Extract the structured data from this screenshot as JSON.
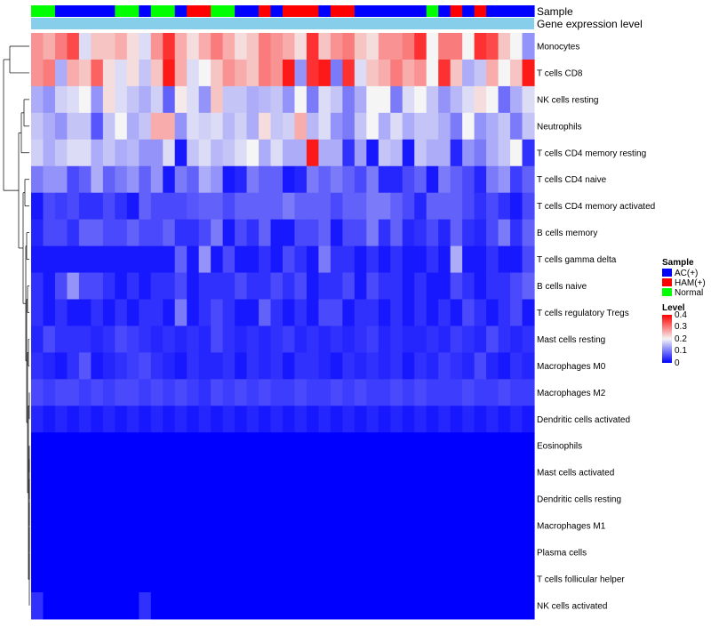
{
  "chart_data": {
    "type": "heatmap",
    "title": "",
    "annotation_tracks": [
      "Sample",
      "Gene expression level"
    ],
    "sample_groups": [
      "AC(+)",
      "HAM(+)",
      "Normal"
    ],
    "sample_annotation": [
      "Normal",
      "Normal",
      "AC(+)",
      "AC(+)",
      "AC(+)",
      "AC(+)",
      "AC(+)",
      "Normal",
      "Normal",
      "AC(+)",
      "Normal",
      "Normal",
      "AC(+)",
      "HAM(+)",
      "HAM(+)",
      "Normal",
      "Normal",
      "AC(+)",
      "AC(+)",
      "HAM(+)",
      "AC(+)",
      "HAM(+)",
      "HAM(+)",
      "HAM(+)",
      "AC(+)",
      "HAM(+)",
      "HAM(+)",
      "AC(+)",
      "AC(+)",
      "AC(+)",
      "AC(+)",
      "AC(+)",
      "AC(+)",
      "Normal",
      "AC(+)",
      "HAM(+)",
      "AC(+)",
      "HAM(+)",
      "AC(+)",
      "AC(+)",
      "AC(+)",
      "AC(+)"
    ],
    "rows": [
      "Monocytes",
      "T cells CD8",
      "NK cells resting",
      "Neutrophils",
      "T cells CD4 memory resting",
      "T cells CD4 naive",
      "T cells CD4 memory activated",
      "B cells memory",
      "T cells gamma delta",
      "B cells naive",
      "T cells regulatory  Tregs",
      "Mast cells resting",
      "Macrophages M0",
      "Macrophages M2",
      "Dendritic cells activated",
      "Eosinophils",
      "Mast cells activated",
      "Dendritic cells resting",
      "Macrophages M1",
      "Plasma cells",
      "T cells follicular helper",
      "NK cells activated"
    ],
    "values": [
      [
        0.28,
        0.26,
        0.3,
        0.34,
        0.18,
        0.24,
        0.24,
        0.26,
        0.22,
        0.18,
        0.28,
        0.36,
        0.26,
        0.22,
        0.26,
        0.3,
        0.26,
        0.22,
        0.24,
        0.3,
        0.28,
        0.26,
        0.22,
        0.36,
        0.24,
        0.28,
        0.3,
        0.24,
        0.22,
        0.28,
        0.28,
        0.3,
        0.36,
        0.2,
        0.3,
        0.3,
        0.2,
        0.36,
        0.34,
        0.24,
        0.2,
        0.12
      ],
      [
        0.28,
        0.3,
        0.14,
        0.26,
        0.24,
        0.32,
        0.22,
        0.18,
        0.22,
        0.16,
        0.24,
        0.38,
        0.26,
        0.18,
        0.2,
        0.24,
        0.28,
        0.26,
        0.24,
        0.3,
        0.28,
        0.38,
        0.12,
        0.36,
        0.38,
        0.1,
        0.36,
        0.18,
        0.24,
        0.26,
        0.3,
        0.26,
        0.28,
        0.2,
        0.36,
        0.24,
        0.14,
        0.16,
        0.26,
        0.2,
        0.24,
        0.38
      ],
      [
        0.14,
        0.12,
        0.17,
        0.18,
        0.2,
        0.12,
        0.22,
        0.18,
        0.16,
        0.14,
        0.17,
        0.08,
        0.21,
        0.18,
        0.12,
        0.24,
        0.16,
        0.16,
        0.14,
        0.15,
        0.16,
        0.12,
        0.2,
        0.1,
        0.18,
        0.16,
        0.1,
        0.14,
        0.2,
        0.2,
        0.1,
        0.18,
        0.2,
        0.16,
        0.12,
        0.15,
        0.18,
        0.22,
        0.2,
        0.09,
        0.14,
        0.18
      ],
      [
        0.16,
        0.14,
        0.12,
        0.16,
        0.16,
        0.07,
        0.16,
        0.2,
        0.14,
        0.16,
        0.26,
        0.26,
        0.12,
        0.18,
        0.17,
        0.18,
        0.15,
        0.17,
        0.14,
        0.22,
        0.16,
        0.17,
        0.26,
        0.15,
        0.18,
        0.12,
        0.1,
        0.16,
        0.2,
        0.14,
        0.18,
        0.14,
        0.16,
        0.16,
        0.14,
        0.1,
        0.2,
        0.12,
        0.14,
        0.16,
        0.1,
        0.16
      ],
      [
        0.17,
        0.14,
        0.16,
        0.18,
        0.18,
        0.14,
        0.16,
        0.14,
        0.15,
        0.12,
        0.12,
        0.18,
        0.02,
        0.16,
        0.18,
        0.15,
        0.16,
        0.18,
        0.2,
        0.14,
        0.18,
        0.14,
        0.14,
        0.38,
        0.14,
        0.14,
        0.04,
        0.13,
        0.02,
        0.16,
        0.15,
        0.02,
        0.16,
        0.14,
        0.14,
        0.03,
        0.12,
        0.1,
        0.14,
        0.16,
        0.2,
        0.04
      ],
      [
        0.1,
        0.12,
        0.12,
        0.06,
        0.08,
        0.14,
        0.08,
        0.1,
        0.12,
        0.08,
        0.12,
        0.02,
        0.1,
        0.08,
        0.14,
        0.12,
        0.02,
        0.03,
        0.1,
        0.08,
        0.08,
        0.02,
        0.03,
        0.1,
        0.08,
        0.1,
        0.08,
        0.06,
        0.1,
        0.03,
        0.03,
        0.06,
        0.08,
        0.02,
        0.1,
        0.08,
        0.06,
        0.03,
        0.1,
        0.12,
        0.05,
        0.08
      ],
      [
        0.02,
        0.06,
        0.05,
        0.06,
        0.04,
        0.04,
        0.06,
        0.04,
        0.02,
        0.08,
        0.06,
        0.06,
        0.06,
        0.07,
        0.08,
        0.08,
        0.06,
        0.08,
        0.08,
        0.08,
        0.08,
        0.1,
        0.08,
        0.08,
        0.08,
        0.06,
        0.08,
        0.08,
        0.1,
        0.1,
        0.08,
        0.06,
        0.03,
        0.08,
        0.08,
        0.08,
        0.06,
        0.04,
        0.06,
        0.04,
        0.02,
        0.06
      ],
      [
        0.03,
        0.06,
        0.06,
        0.04,
        0.08,
        0.08,
        0.06,
        0.06,
        0.08,
        0.06,
        0.06,
        0.08,
        0.04,
        0.04,
        0.06,
        0.1,
        0.02,
        0.06,
        0.04,
        0.08,
        0.02,
        0.02,
        0.06,
        0.06,
        0.08,
        0.02,
        0.06,
        0.06,
        0.1,
        0.04,
        0.08,
        0.03,
        0.04,
        0.06,
        0.03,
        0.08,
        0.04,
        0.03,
        0.06,
        0.1,
        0.04,
        0.08
      ],
      [
        0.02,
        0.02,
        0.02,
        0.02,
        0.02,
        0.02,
        0.02,
        0.02,
        0.02,
        0.02,
        0.02,
        0.02,
        0.08,
        0.02,
        0.12,
        0.02,
        0.06,
        0.02,
        0.02,
        0.04,
        0.02,
        0.06,
        0.04,
        0.02,
        0.1,
        0.04,
        0.04,
        0.02,
        0.04,
        0.02,
        0.04,
        0.02,
        0.02,
        0.04,
        0.02,
        0.14,
        0.02,
        0.02,
        0.04,
        0.02,
        0.02,
        0.06
      ],
      [
        0.04,
        0.02,
        0.06,
        0.12,
        0.06,
        0.06,
        0.04,
        0.02,
        0.04,
        0.02,
        0.04,
        0.04,
        0.06,
        0.02,
        0.04,
        0.04,
        0.04,
        0.06,
        0.04,
        0.04,
        0.06,
        0.04,
        0.06,
        0.02,
        0.04,
        0.04,
        0.06,
        0.02,
        0.06,
        0.04,
        0.04,
        0.02,
        0.04,
        0.02,
        0.02,
        0.06,
        0.04,
        0.02,
        0.04,
        0.04,
        0.06,
        0.08
      ],
      [
        0.04,
        0.02,
        0.04,
        0.02,
        0.02,
        0.04,
        0.02,
        0.04,
        0.02,
        0.04,
        0.04,
        0.02,
        0.1,
        0.02,
        0.04,
        0.06,
        0.04,
        0.02,
        0.02,
        0.08,
        0.04,
        0.02,
        0.04,
        0.02,
        0.06,
        0.06,
        0.02,
        0.04,
        0.04,
        0.02,
        0.04,
        0.02,
        0.04,
        0.02,
        0.04,
        0.02,
        0.06,
        0.04,
        0.02,
        0.04,
        0.06,
        0.02
      ],
      [
        0.03,
        0.06,
        0.04,
        0.04,
        0.04,
        0.03,
        0.04,
        0.06,
        0.05,
        0.04,
        0.03,
        0.04,
        0.03,
        0.04,
        0.03,
        0.06,
        0.04,
        0.03,
        0.04,
        0.03,
        0.04,
        0.05,
        0.03,
        0.04,
        0.03,
        0.04,
        0.03,
        0.04,
        0.05,
        0.03,
        0.04,
        0.03,
        0.03,
        0.04,
        0.03,
        0.05,
        0.04,
        0.03,
        0.06,
        0.04,
        0.03,
        0.04
      ],
      [
        0.04,
        0.03,
        0.02,
        0.04,
        0.07,
        0.02,
        0.03,
        0.04,
        0.05,
        0.06,
        0.04,
        0.03,
        0.02,
        0.04,
        0.03,
        0.03,
        0.04,
        0.02,
        0.04,
        0.03,
        0.04,
        0.02,
        0.04,
        0.04,
        0.03,
        0.02,
        0.04,
        0.03,
        0.04,
        0.03,
        0.04,
        0.02,
        0.04,
        0.03,
        0.05,
        0.04,
        0.03,
        0.06,
        0.03,
        0.02,
        0.04,
        0.03
      ],
      [
        0.06,
        0.05,
        0.06,
        0.06,
        0.05,
        0.06,
        0.05,
        0.06,
        0.06,
        0.05,
        0.06,
        0.05,
        0.06,
        0.05,
        0.04,
        0.06,
        0.05,
        0.06,
        0.05,
        0.06,
        0.05,
        0.05,
        0.06,
        0.05,
        0.05,
        0.06,
        0.05,
        0.06,
        0.05,
        0.05,
        0.06,
        0.05,
        0.06,
        0.05,
        0.05,
        0.05,
        0.06,
        0.05,
        0.05,
        0.06,
        0.05,
        0.05
      ],
      [
        0.03,
        0.02,
        0.03,
        0.02,
        0.03,
        0.02,
        0.03,
        0.02,
        0.03,
        0.02,
        0.03,
        0.02,
        0.03,
        0.02,
        0.03,
        0.02,
        0.03,
        0.02,
        0.03,
        0.02,
        0.03,
        0.02,
        0.03,
        0.02,
        0.03,
        0.02,
        0.03,
        0.02,
        0.03,
        0.02,
        0.03,
        0.02,
        0.03,
        0.02,
        0.03,
        0.02,
        0.03,
        0.02,
        0.03,
        0.02,
        0.03,
        0.02
      ],
      [
        0,
        0,
        0,
        0,
        0,
        0,
        0,
        0,
        0,
        0,
        0,
        0,
        0,
        0,
        0,
        0,
        0,
        0,
        0,
        0,
        0,
        0,
        0,
        0,
        0,
        0,
        0,
        0,
        0,
        0,
        0,
        0,
        0,
        0,
        0,
        0,
        0,
        0,
        0,
        0,
        0,
        0
      ],
      [
        0,
        0,
        0,
        0,
        0,
        0,
        0,
        0,
        0,
        0,
        0,
        0,
        0,
        0,
        0,
        0,
        0,
        0,
        0,
        0,
        0,
        0,
        0,
        0,
        0,
        0,
        0,
        0,
        0,
        0,
        0,
        0,
        0,
        0,
        0,
        0,
        0,
        0,
        0,
        0,
        0,
        0
      ],
      [
        0,
        0,
        0,
        0,
        0,
        0,
        0,
        0,
        0,
        0,
        0,
        0,
        0,
        0,
        0,
        0,
        0,
        0,
        0,
        0,
        0,
        0,
        0,
        0,
        0,
        0,
        0,
        0,
        0,
        0,
        0,
        0,
        0,
        0,
        0,
        0,
        0,
        0,
        0,
        0,
        0,
        0
      ],
      [
        0,
        0,
        0,
        0,
        0,
        0,
        0,
        0,
        0,
        0,
        0,
        0,
        0,
        0,
        0,
        0,
        0,
        0,
        0,
        0,
        0,
        0,
        0,
        0,
        0,
        0,
        0,
        0,
        0,
        0,
        0,
        0,
        0,
        0,
        0,
        0,
        0,
        0,
        0,
        0,
        0,
        0
      ],
      [
        0,
        0,
        0,
        0,
        0,
        0,
        0,
        0,
        0,
        0,
        0,
        0,
        0,
        0,
        0,
        0,
        0,
        0,
        0,
        0,
        0,
        0,
        0,
        0,
        0,
        0,
        0,
        0,
        0,
        0,
        0,
        0,
        0,
        0,
        0,
        0,
        0,
        0,
        0,
        0,
        0,
        0
      ],
      [
        0,
        0,
        0,
        0,
        0,
        0,
        0,
        0,
        0,
        0,
        0,
        0,
        0,
        0,
        0,
        0,
        0,
        0,
        0,
        0,
        0,
        0,
        0,
        0,
        0,
        0,
        0,
        0,
        0,
        0,
        0,
        0,
        0,
        0,
        0,
        0,
        0,
        0,
        0,
        0,
        0,
        0
      ],
      [
        0.04,
        0,
        0,
        0,
        0,
        0,
        0,
        0,
        0,
        0.04,
        0,
        0,
        0,
        0,
        0,
        0,
        0,
        0,
        0,
        0,
        0,
        0,
        0,
        0,
        0,
        0,
        0,
        0,
        0,
        0,
        0,
        0,
        0,
        0,
        0,
        0,
        0,
        0,
        0,
        0,
        0,
        0
      ]
    ],
    "gene_expression_level_color": "#87ceeb",
    "color_scale": {
      "min": 0,
      "mid": 0.2,
      "max": 0.4,
      "low": "#0000ff",
      "mid_color": "#f5f5f5",
      "high": "#ff0000"
    },
    "sample_colors": {
      "AC(+)": "#0000ff",
      "HAM(+)": "#ff0000",
      "Normal": "#00ff00"
    },
    "legend_sample": {
      "title": "Sample",
      "items": [
        "AC(+)",
        "HAM(+)",
        "Normal"
      ]
    },
    "legend_level": {
      "title": "Level",
      "ticks": [
        "0.4",
        "0.3",
        "0.2",
        "0.1",
        "0"
      ],
      "tick_values": [
        0.4,
        0.3,
        0.2,
        0.1,
        0
      ]
    },
    "dendrogram": "rows",
    "legend_placement": "right"
  }
}
